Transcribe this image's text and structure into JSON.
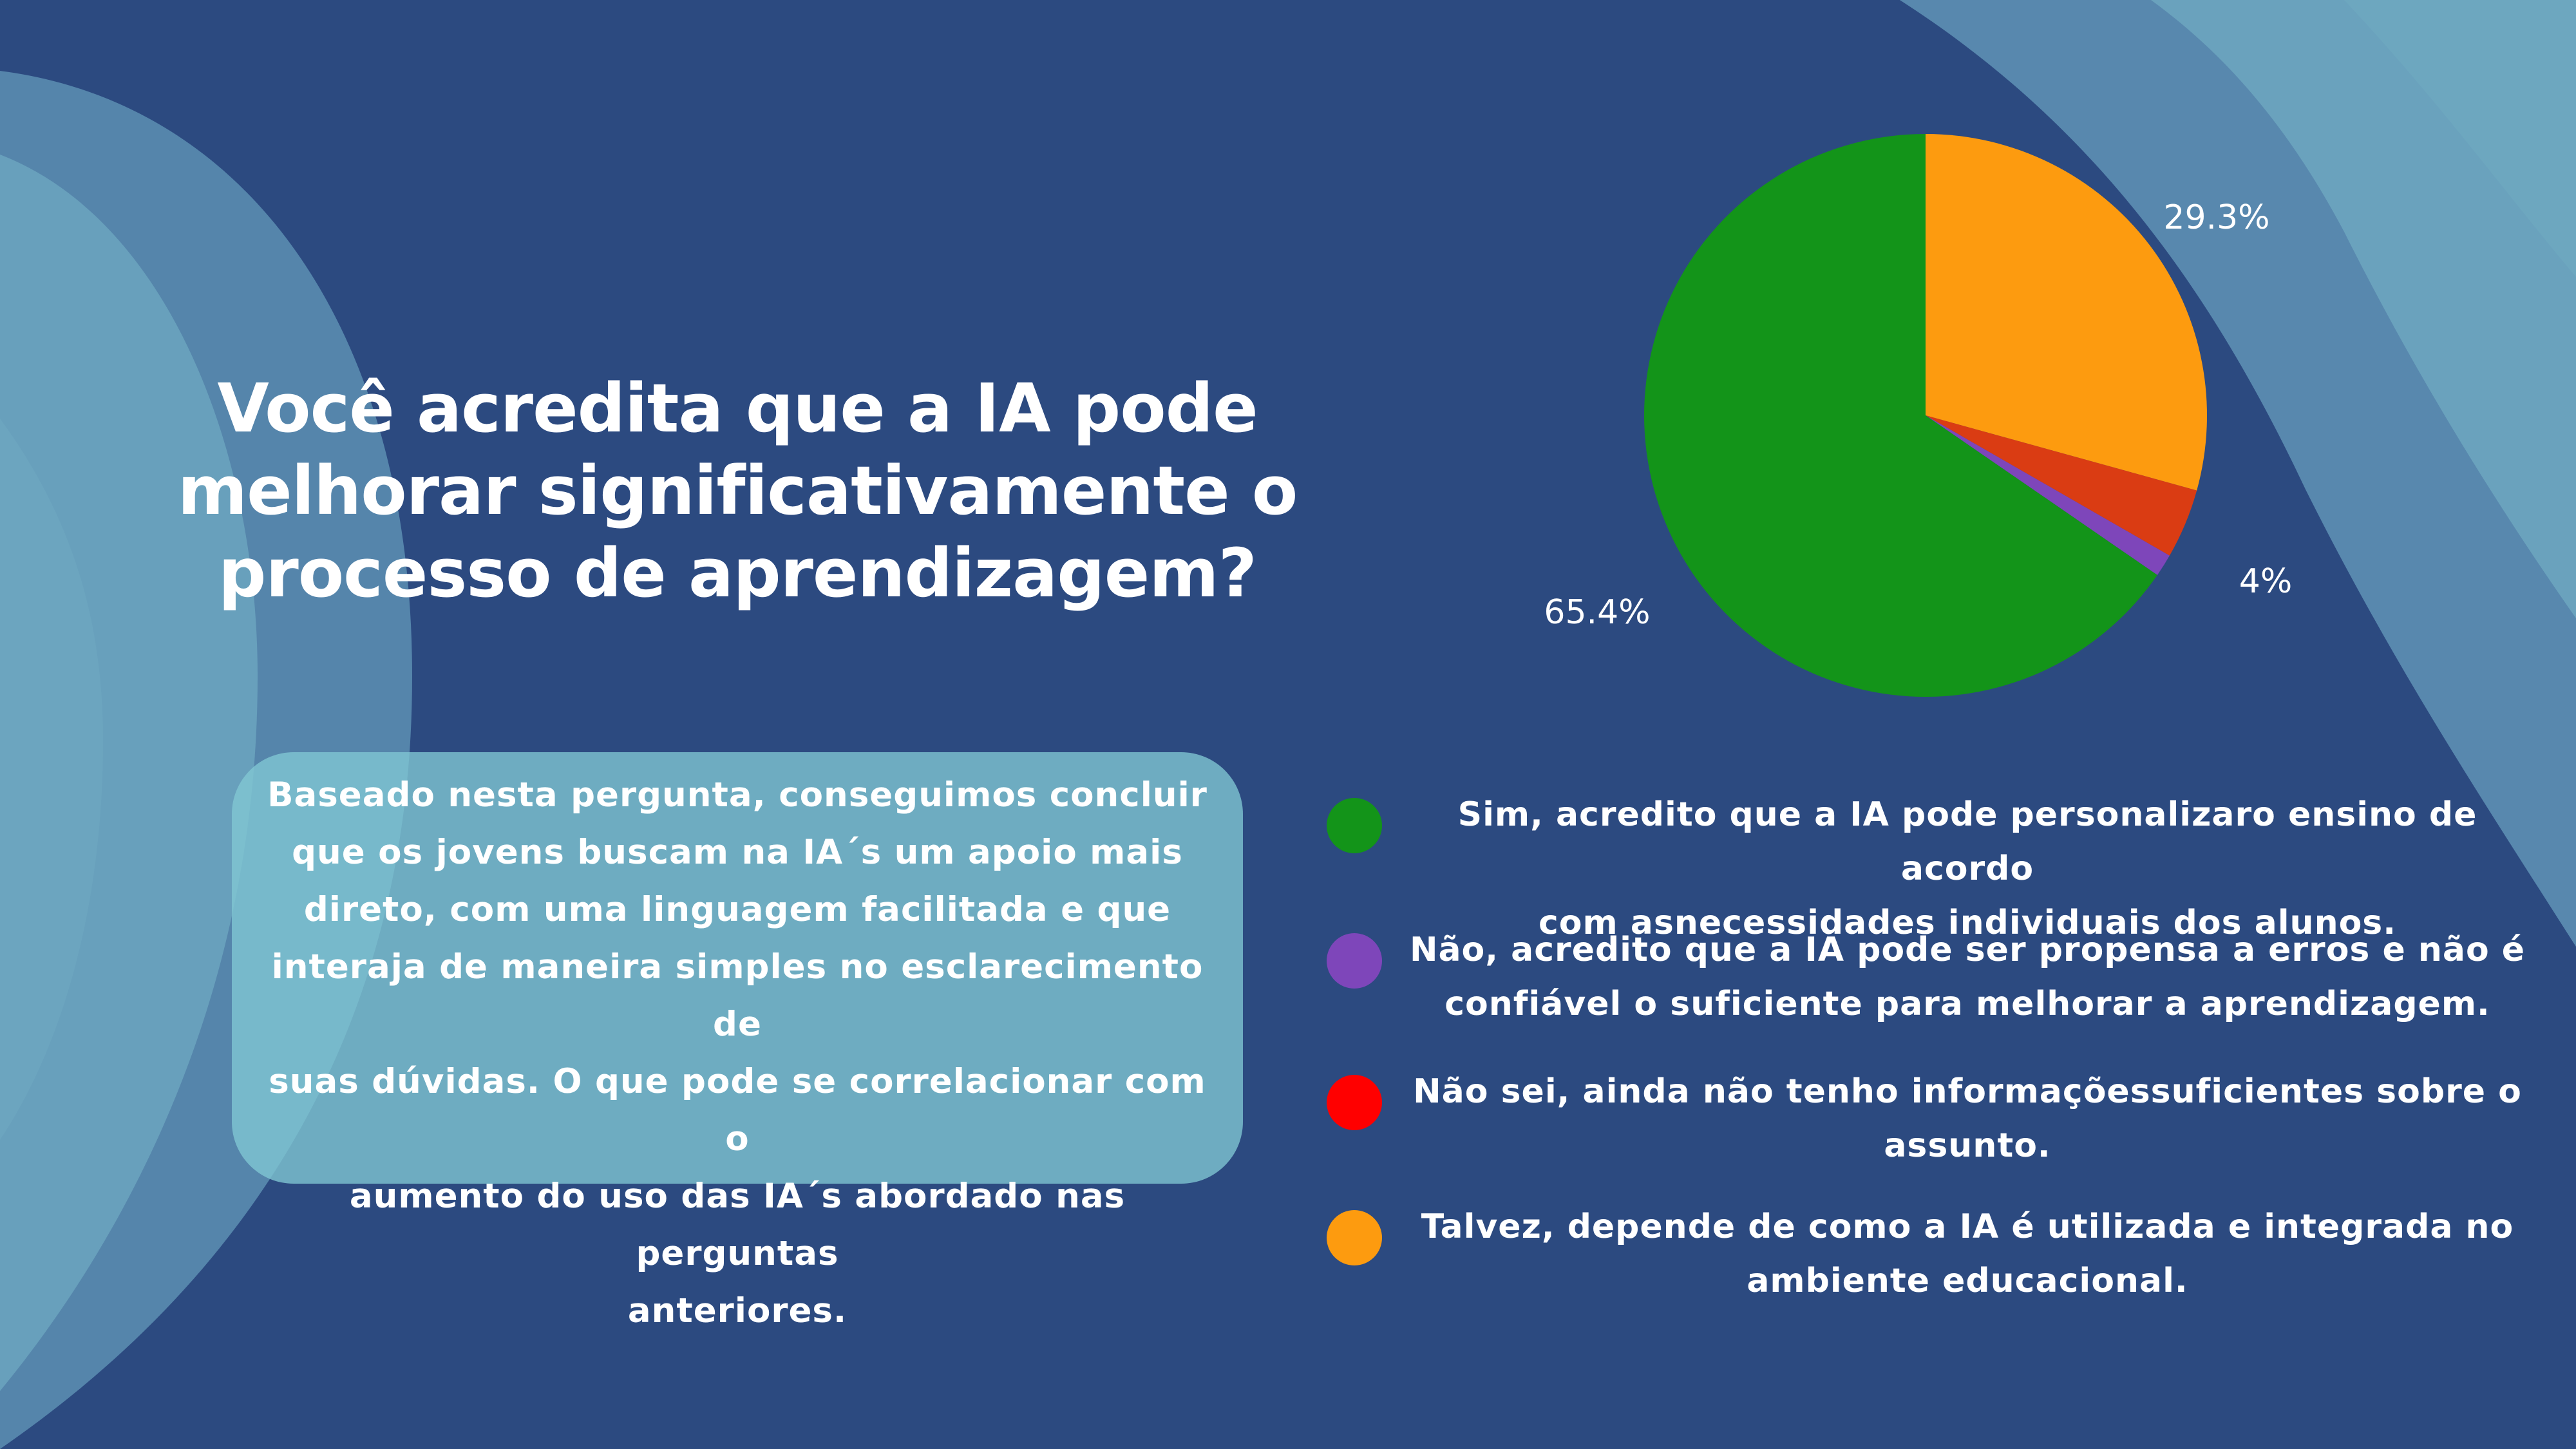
{
  "slide": {
    "title_lines": [
      "Você acredita que a IA pode",
      "melhorar significativamente o",
      "processo de aprendizagem?"
    ],
    "info_box": {
      "lines": [
        "Baseado nesta pergunta, conseguimos concluir",
        "que os jovens buscam na IA´s um apoio mais",
        "direto, com uma linguagem facilitada e que",
        "interaja de maneira simples no esclarecimento de",
        "suas dúvidas. O que pode se correlacionar com o",
        "aumento do uso das IA´s abordado nas perguntas",
        "anteriores."
      ]
    },
    "colors": {
      "background": "#2c4a80",
      "wave_light": "#6fa9c1",
      "wave_mid": "#5d8fb3",
      "info_box": "#82c8d4"
    }
  },
  "chart_data": {
    "type": "pie",
    "slices": [
      {
        "label": "Sim, acredito que a IA pode personalizaro ensino de acordo com asnecessidades individuais dos alunos.",
        "value": 65.4,
        "data_label": "65.4%",
        "color": "#139419"
      },
      {
        "label": "Não, acredito que a IA pode ser propensa a erros e não é confiável o suficiente para melhorar a aprendizagem.",
        "value": 1.3,
        "data_label": "",
        "color": "#7e46ba"
      },
      {
        "label": "Não sei, ainda não tenho informaçõessuficientes sobre o assunto.",
        "value": 4,
        "data_label": "4%",
        "color": "#da3c13"
      },
      {
        "label": "Talvez, depende de como a IA é utilizada e integrada no ambiente educacional.",
        "value": 29.3,
        "data_label": "29.3%",
        "color": "#fd9b0f"
      }
    ],
    "legend": [
      {
        "lines": [
          "Sim, acredito que a IA pode personalizaro ensino de acordo",
          "com asnecessidades individuais dos alunos."
        ],
        "color": "#139419"
      },
      {
        "lines": [
          "Não, acredito que a IA pode ser propensa a erros e não é",
          "confiável o suficiente para melhorar a aprendizagem."
        ],
        "color": "#7e46ba"
      },
      {
        "lines": [
          "Não sei, ainda não tenho informaçõessuficientes sobre o",
          "assunto."
        ],
        "color": "#ff0000"
      },
      {
        "lines": [
          "Talvez, depende de como a IA é utilizada e integrada no",
          "ambiente educacional."
        ],
        "color": "#fd9b0f"
      }
    ],
    "legend_position": "bottom"
  }
}
